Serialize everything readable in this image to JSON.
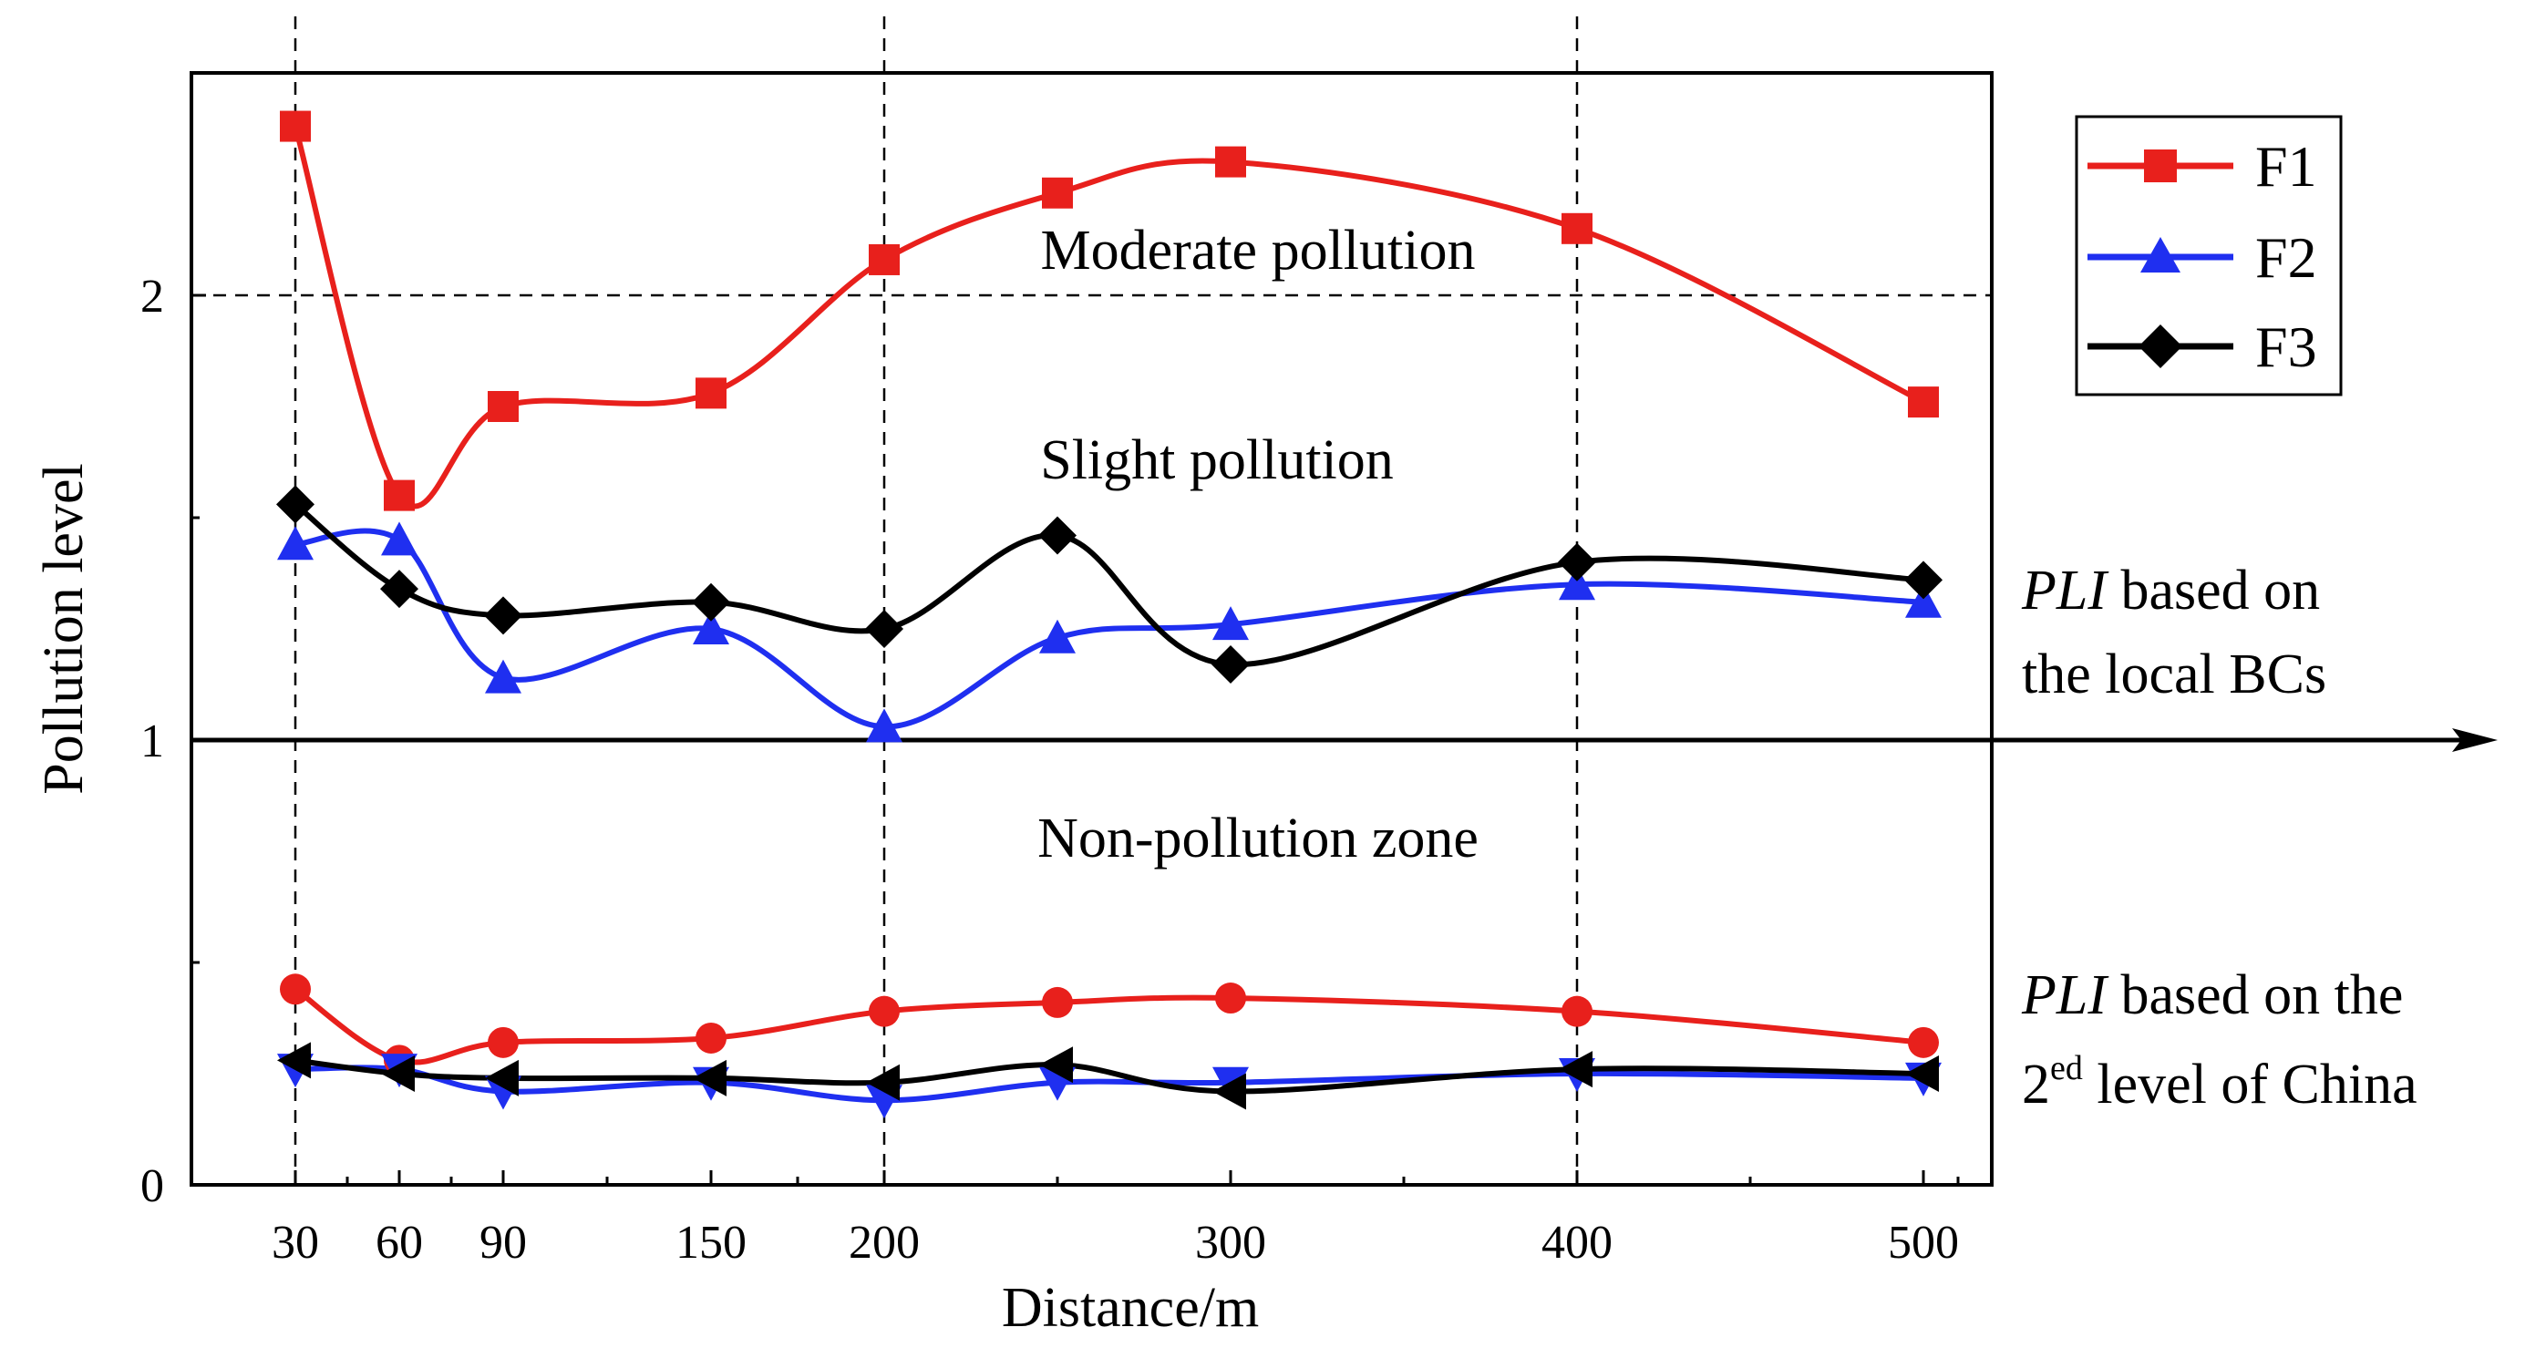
{
  "chart_data": {
    "type": "line",
    "ylabel": "Pollution level",
    "xlabel": "Distance/m",
    "x": [
      30,
      60,
      90,
      150,
      200,
      250,
      300,
      400,
      500
    ],
    "xlim": [
      0,
      520
    ],
    "ylim": [
      0,
      2.5
    ],
    "x_ticks": [
      "30",
      "60",
      "90",
      "150",
      "200",
      "300",
      "400",
      "500"
    ],
    "x_tick_values": [
      30,
      60,
      90,
      150,
      200,
      300,
      400,
      500
    ],
    "x_minor_ticks": [
      0,
      45,
      75,
      120,
      175,
      250,
      350,
      450,
      510
    ],
    "y_ticks": [
      "0",
      "1",
      "2"
    ],
    "y_tick_values": [
      0,
      1,
      2
    ],
    "y_minor_ticks": [
      0.5,
      1.5
    ],
    "reference_vlines": [
      30,
      200,
      400
    ],
    "reference_hline": 2,
    "baseline": 1,
    "zones": {
      "moderate": "Moderate pollution",
      "slight": "Slight pollution",
      "none": "Non-pollution zone"
    },
    "side_labels": {
      "local_em": "PLI",
      "local_rest": " based on",
      "local_line2": "the local BCs",
      "china_em": "PLI",
      "china_rest": " based on the",
      "china_pre": "2",
      "china_sup": "ed",
      "china_post": " level of China"
    },
    "legend": {
      "position": "top-right",
      "entries": [
        "F1",
        "F2",
        "F3"
      ]
    },
    "groups": [
      {
        "name": "PLI based on the local BCs",
        "series": [
          {
            "name": "F1",
            "color": "#e8201c",
            "marker": "square",
            "values": [
              2.38,
              1.55,
              1.75,
              1.78,
              2.08,
              2.23,
              2.3,
              2.15,
              1.76
            ]
          },
          {
            "name": "F2",
            "color": "#1f2ff0",
            "marker": "triangle",
            "values": [
              1.44,
              1.45,
              1.14,
              1.25,
              1.03,
              1.23,
              1.26,
              1.35,
              1.31
            ]
          },
          {
            "name": "F3",
            "color": "#000000",
            "marker": "diamond",
            "values": [
              1.53,
              1.34,
              1.28,
              1.31,
              1.25,
              1.46,
              1.17,
              1.4,
              1.36
            ]
          }
        ]
      },
      {
        "name": "PLI based on the 2ed level of China",
        "series": [
          {
            "name": "F1",
            "color": "#e8201c",
            "marker": "circle",
            "values": [
              0.44,
              0.28,
              0.32,
              0.33,
              0.39,
              0.41,
              0.42,
              0.39,
              0.32
            ]
          },
          {
            "name": "F2",
            "color": "#1f2ff0",
            "marker": "triangle-down",
            "values": [
              0.26,
              0.26,
              0.21,
              0.23,
              0.19,
              0.23,
              0.23,
              0.25,
              0.24
            ]
          },
          {
            "name": "F3",
            "color": "#000000",
            "marker": "triangle-left",
            "values": [
              0.28,
              0.25,
              0.24,
              0.24,
              0.23,
              0.27,
              0.21,
              0.26,
              0.25
            ]
          }
        ]
      }
    ]
  }
}
